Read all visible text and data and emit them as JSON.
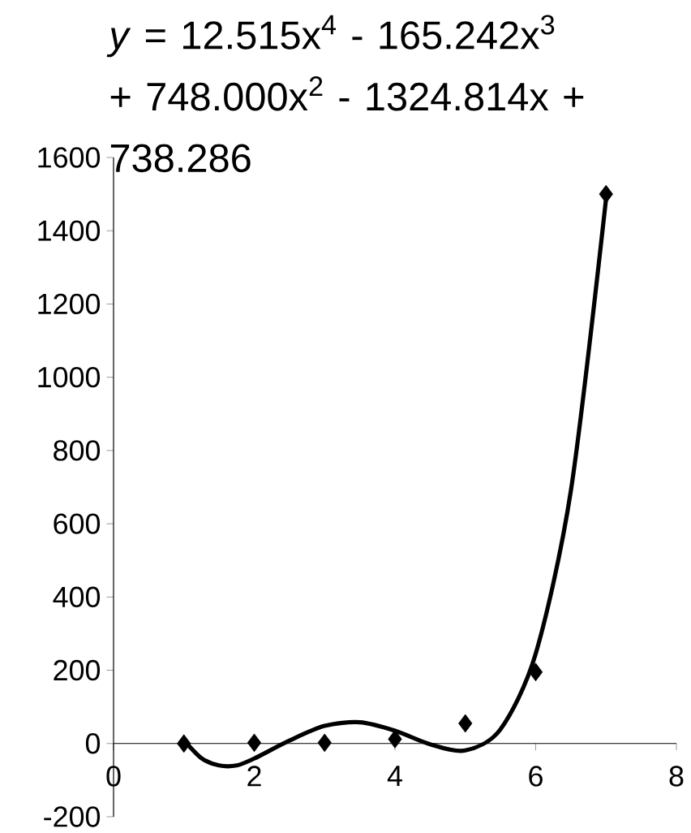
{
  "chart_data": {
    "type": "scatter",
    "title": "*y* = 12.515x$^{4}$ - 165.242x$^{3}$ + 748.000x$^{2}$ - 1324.814x + 738.286",
    "series": [
      {
        "type": "scatter",
        "color": "#000000",
        "marker": "diamond",
        "x": [
          1,
          2,
          3,
          4,
          5,
          6,
          7
        ],
        "values": [
          0,
          2,
          2,
          12,
          55,
          195,
          1500
        ]
      },
      {
        "type": "line",
        "color": "#000000",
        "marker": "none",
        "line_style": "solid",
        "x": [
          1,
          1.25,
          1.5,
          1.75,
          2,
          2.5,
          3,
          3.5,
          4,
          4.5,
          5,
          5.5,
          6,
          6.5,
          7
        ],
        "values": [
          9,
          -40,
          -60,
          -60,
          -41,
          8,
          48,
          58,
          35,
          -2,
          -19,
          39,
          245,
          690,
          1487
        ]
      }
    ],
    "xlim": [
      0,
      8
    ],
    "xticks": [
      0,
      2,
      4,
      6,
      8
    ],
    "ylim": [
      -200,
      1600
    ],
    "yticks": [
      -200,
      0,
      200,
      400,
      600,
      800,
      1000,
      1200,
      1400,
      1600
    ],
    "grid": false
  }
}
